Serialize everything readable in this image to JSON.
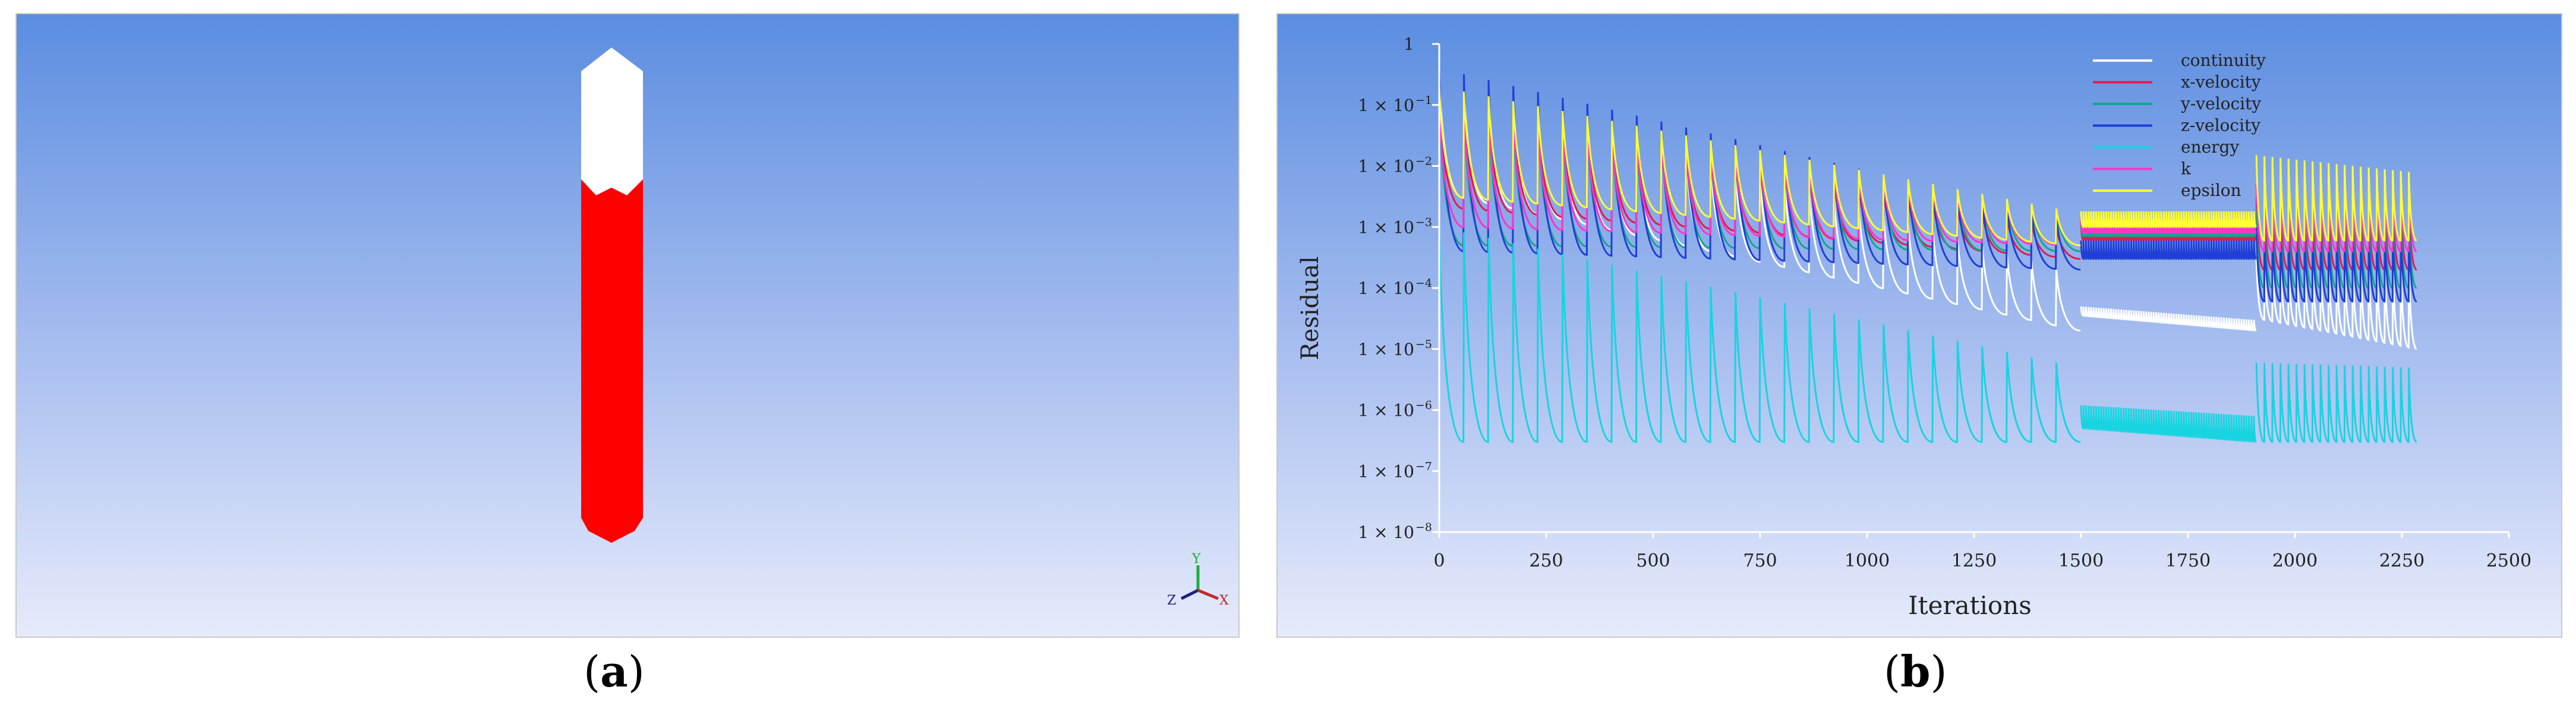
{
  "panel_a": {
    "caption_letter": "a",
    "axis_triad": {
      "y": "Y",
      "z": "Z",
      "x": "X"
    },
    "colors": {
      "upper_region": "#ffffff",
      "lower_region": "#ff0000",
      "axis_y": "#1fae3b",
      "axis_z": "#1a237e",
      "axis_x": "#c62828"
    },
    "fill_level_fraction": 0.26
  },
  "panel_b": {
    "caption_letter": "b",
    "chart_data": {
      "type": "line",
      "xlabel": "Iterations",
      "ylabel": "Residual",
      "xlim": [
        0,
        2500
      ],
      "ylim": [
        1e-08,
        1
      ],
      "y_scale": "log",
      "grid": false,
      "legend_position": "top-right",
      "x_ticks": [
        0,
        250,
        500,
        750,
        1000,
        1250,
        1500,
        1750,
        2000,
        2250,
        2500
      ],
      "y_ticks": [
        {
          "value": 1,
          "base": "1",
          "exp": ""
        },
        {
          "value": 0.1,
          "base": "1 × 10",
          "exp": "−1"
        },
        {
          "value": 0.01,
          "base": "1 × 10",
          "exp": "−2"
        },
        {
          "value": 0.001,
          "base": "1 × 10",
          "exp": "−3"
        },
        {
          "value": 0.0001,
          "base": "1 × 10",
          "exp": "−4"
        },
        {
          "value": 1e-05,
          "base": "1 × 10",
          "exp": "−5"
        },
        {
          "value": 1e-06,
          "base": "1 × 10",
          "exp": "−6"
        },
        {
          "value": 1e-07,
          "base": "1 × 10",
          "exp": "−7"
        },
        {
          "value": 1e-08,
          "base": "1 × 10",
          "exp": "−8"
        }
      ],
      "series": [
        {
          "name": "continuity",
          "color": "#ffffff",
          "segments": [
            {
              "x0": 0,
              "x1": 1500,
              "cycles": 26,
              "peak_start": 0.3,
              "peak_end": 0.0002,
              "trough_start": 0.003,
              "trough_end": 2e-05
            },
            {
              "x0": 1500,
              "x1": 1910,
              "cycles": 70,
              "peak_start": 5e-05,
              "peak_end": 3e-05,
              "trough_start": 3.5e-05,
              "trough_end": 2e-05
            },
            {
              "x0": 1910,
              "x1": 2285,
              "cycles": 20,
              "peak_start": 0.0003,
              "peak_end": 0.0003,
              "trough_start": 3e-05,
              "trough_end": 1e-05
            }
          ]
        },
        {
          "name": "x-velocity",
          "color": "#e5194b",
          "segments": [
            {
              "x0": 0,
              "x1": 1500,
              "cycles": 26,
              "peak_start": 0.15,
              "peak_end": 0.001,
              "trough_start": 0.002,
              "trough_end": 0.0003
            },
            {
              "x0": 1500,
              "x1": 1910,
              "cycles": 70,
              "peak_start": 0.0012,
              "peak_end": 0.0012,
              "trough_start": 0.0006,
              "trough_end": 0.0006
            },
            {
              "x0": 1910,
              "x1": 2285,
              "cycles": 20,
              "peak_start": 0.003,
              "peak_end": 0.003,
              "trough_start": 0.0002,
              "trough_end": 0.0002
            }
          ]
        },
        {
          "name": "y-velocity",
          "color": "#0fa88c",
          "segments": [
            {
              "x0": 0,
              "x1": 1500,
              "cycles": 26,
              "peak_start": 0.1,
              "peak_end": 0.002,
              "trough_start": 0.0005,
              "trough_end": 0.0004
            },
            {
              "x0": 1500,
              "x1": 1910,
              "cycles": 70,
              "peak_start": 0.0015,
              "peak_end": 0.0015,
              "trough_start": 0.0007,
              "trough_end": 0.0007
            },
            {
              "x0": 1910,
              "x1": 2285,
              "cycles": 20,
              "peak_start": 0.002,
              "peak_end": 0.002,
              "trough_start": 0.0001,
              "trough_end": 0.0001
            }
          ]
        },
        {
          "name": "z-velocity",
          "color": "#1f3fd6",
          "segments": [
            {
              "x0": 0,
              "x1": 1500,
              "cycles": 26,
              "peak_start": 0.4,
              "peak_end": 0.0015,
              "trough_start": 0.0004,
              "trough_end": 0.0002
            },
            {
              "x0": 1500,
              "x1": 1910,
              "cycles": 70,
              "peak_start": 0.0006,
              "peak_end": 0.0006,
              "trough_start": 0.0003,
              "trough_end": 0.0003
            },
            {
              "x0": 1910,
              "x1": 2285,
              "cycles": 20,
              "peak_start": 0.001,
              "peak_end": 0.001,
              "trough_start": 6e-05,
              "trough_end": 6e-05
            }
          ]
        },
        {
          "name": "energy",
          "color": "#18d4e0",
          "segments": [
            {
              "x0": 0,
              "x1": 1500,
              "cycles": 26,
              "peak_start": 0.001,
              "peak_end": 6e-06,
              "trough_start": 3e-07,
              "trough_end": 3e-07
            },
            {
              "x0": 1500,
              "x1": 1910,
              "cycles": 70,
              "peak_start": 1.2e-06,
              "peak_end": 8e-07,
              "trough_start": 5e-07,
              "trough_end": 3e-07
            },
            {
              "x0": 1910,
              "x1": 2285,
              "cycles": 20,
              "peak_start": 6e-06,
              "peak_end": 5e-06,
              "trough_start": 3e-07,
              "trough_end": 3e-07
            }
          ]
        },
        {
          "name": "k",
          "color": "#ff33cc",
          "segments": [
            {
              "x0": 0,
              "x1": 1500,
              "cycles": 26,
              "peak_start": 0.1,
              "peak_end": 0.002,
              "trough_start": 0.001,
              "trough_end": 0.0005
            },
            {
              "x0": 1500,
              "x1": 1910,
              "cycles": 70,
              "peak_start": 0.0015,
              "peak_end": 0.0015,
              "trough_start": 0.0008,
              "trough_end": 0.0008
            },
            {
              "x0": 1910,
              "x1": 2285,
              "cycles": 20,
              "peak_start": 0.005,
              "peak_end": 0.005,
              "trough_start": 0.0004,
              "trough_end": 0.0004
            }
          ]
        },
        {
          "name": "epsilon",
          "color": "#ffff33",
          "segments": [
            {
              "x0": 0,
              "x1": 1500,
              "cycles": 26,
              "peak_start": 0.2,
              "peak_end": 0.002,
              "trough_start": 0.003,
              "trough_end": 0.0005
            },
            {
              "x0": 1500,
              "x1": 1910,
              "cycles": 70,
              "peak_start": 0.0018,
              "peak_end": 0.0018,
              "trough_start": 0.001,
              "trough_end": 0.001
            },
            {
              "x0": 1910,
              "x1": 2285,
              "cycles": 20,
              "peak_start": 0.015,
              "peak_end": 0.008,
              "trough_start": 0.0006,
              "trough_end": 0.0006
            }
          ]
        }
      ]
    }
  }
}
